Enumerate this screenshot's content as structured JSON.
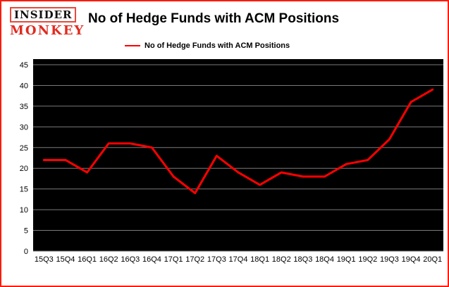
{
  "header": {
    "logo_line1": "INSIDER",
    "logo_line2": "MONKEY",
    "title": "No of Hedge Funds with ACM Positions"
  },
  "legend": {
    "label": "No of Hedge Funds with ACM Positions",
    "color": "#ff0000"
  },
  "chart_data": {
    "type": "line",
    "title": "No of Hedge Funds with ACM Positions",
    "categories": [
      "15Q3",
      "15Q4",
      "16Q1",
      "16Q2",
      "16Q3",
      "16Q4",
      "17Q1",
      "17Q2",
      "17Q3",
      "17Q4",
      "18Q1",
      "18Q2",
      "18Q3",
      "18Q4",
      "19Q1",
      "19Q2",
      "19Q3",
      "19Q4",
      "20Q1"
    ],
    "values": [
      22,
      22,
      19,
      26,
      26,
      25,
      18,
      14,
      23,
      19,
      16,
      19,
      18,
      18,
      21,
      22,
      27,
      36,
      39
    ],
    "xlabel": "",
    "ylabel": "",
    "ylim": [
      0,
      45
    ],
    "ytick_step": 5,
    "grid": true,
    "legend_position": "top-left",
    "line_color": "#ff0000",
    "plot_background": "#000000",
    "grid_color": "#7a7a7a",
    "tick_label_color": "#000000"
  },
  "colors": {
    "frame_border": "#fb1b0e",
    "page_background": "#ffffff"
  }
}
